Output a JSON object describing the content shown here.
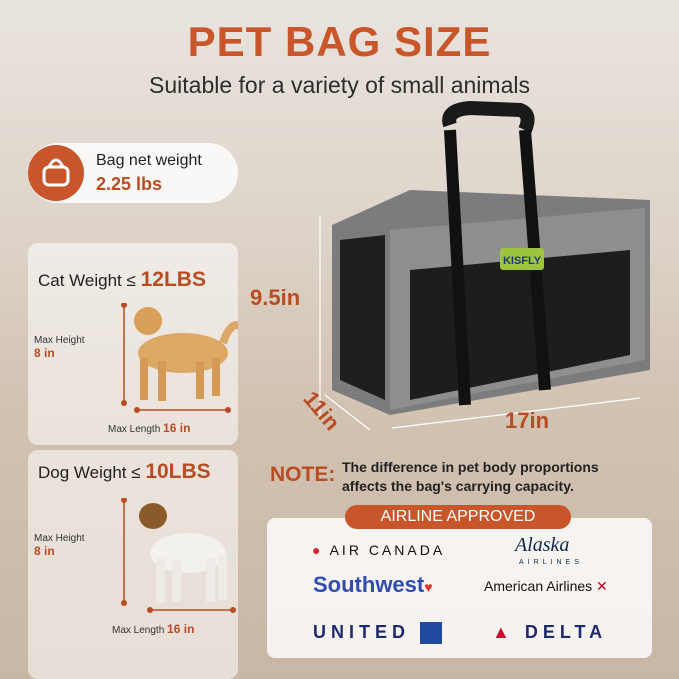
{
  "header": {
    "title": "PET BAG SIZE",
    "subtitle": "Suitable for a variety of small animals"
  },
  "bag_weight": {
    "label": "Bag net weight",
    "value": "2.25 lbs",
    "icon": "bag-icon"
  },
  "cat": {
    "label": "Cat Weight",
    "symbol": "≤",
    "limit": "12LBS",
    "height_label": "Max Height",
    "height": "8 in",
    "length_label": "Max Length",
    "length": "16 in"
  },
  "dog": {
    "label": "Dog Weight",
    "symbol": "≤",
    "limit": "10LBS",
    "height_label": "Max Height",
    "height": "8 in",
    "length_label": "Max Length",
    "length": "16 in"
  },
  "bag": {
    "brand": "KISFLY",
    "height": "9.5in",
    "depth": "11in",
    "length": "17in"
  },
  "note": {
    "label": "NOTE:",
    "text_line1": "The difference in pet body proportions",
    "text_line2": "affects the bag's carrying capacity."
  },
  "airlines": {
    "title": "AIRLINE APPROVED",
    "logos": [
      "AIR CANADA",
      "Alaska",
      "AIRLINES",
      "Southwest",
      "American Airlines",
      "UNITED",
      "DELTA"
    ]
  },
  "colors": {
    "accent": "#c8562a",
    "airline_blue": "#1f2a6e"
  }
}
